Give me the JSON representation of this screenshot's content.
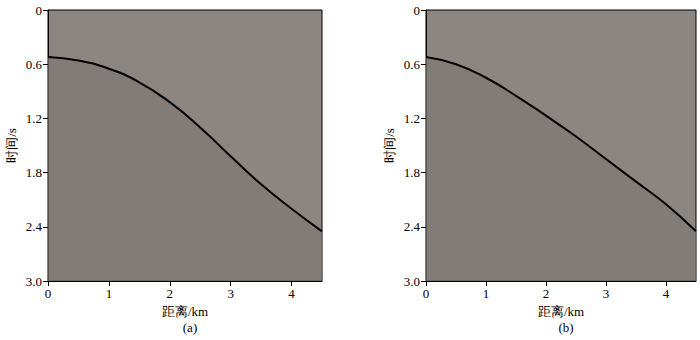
{
  "chart_data": [
    {
      "type": "line",
      "title": "(a)",
      "xlabel": "距离/km",
      "ylabel": "时间/s",
      "x": [
        0,
        0.5,
        1,
        1.5,
        2,
        2.5,
        3,
        3.5,
        4,
        4.5
      ],
      "values": [
        0.52,
        0.56,
        0.65,
        0.8,
        1.02,
        1.3,
        1.62,
        1.93,
        2.2,
        2.45
      ],
      "color": "#000000",
      "line_style": "solid",
      "xlim": [
        0,
        4.5
      ],
      "xticks": [
        0,
        1,
        2,
        3,
        4
      ],
      "ylim": [
        0,
        3
      ],
      "yticks": [
        0,
        0.6,
        1.2,
        1.8,
        2.4,
        {
          "value": 3,
          "label": "3.0"
        }
      ],
      "grid": false
    },
    {
      "type": "line",
      "title": "(b)",
      "xlabel": "距离/km",
      "ylabel": "时间/s",
      "x": [
        0,
        0.5,
        1,
        1.5,
        2,
        2.5,
        3,
        3.5,
        4,
        4.5
      ],
      "values": [
        0.52,
        0.6,
        0.75,
        0.95,
        1.17,
        1.4,
        1.65,
        1.9,
        2.15,
        2.45
      ],
      "color": "#000000",
      "line_style": "solid",
      "xlim": [
        0,
        4.5
      ],
      "xticks": [
        0,
        1,
        2,
        3,
        4
      ],
      "ylim": [
        0,
        3
      ],
      "yticks": [
        0,
        0.6,
        1.2,
        1.8,
        2.4,
        {
          "value": 3,
          "label": "3.0"
        }
      ],
      "grid": false
    }
  ]
}
